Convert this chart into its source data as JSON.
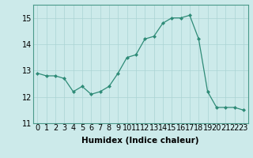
{
  "x": [
    0,
    1,
    2,
    3,
    4,
    5,
    6,
    7,
    8,
    9,
    10,
    11,
    12,
    13,
    14,
    15,
    16,
    17,
    18,
    19,
    20,
    21,
    22,
    23
  ],
  "y": [
    12.9,
    12.8,
    12.8,
    12.7,
    12.2,
    12.4,
    12.1,
    12.2,
    12.4,
    12.9,
    13.5,
    13.6,
    14.2,
    14.3,
    14.8,
    15.0,
    15.0,
    15.1,
    14.2,
    12.2,
    11.6,
    11.6,
    11.6,
    11.5
  ],
  "line_color": "#2e8b77",
  "marker": "D",
  "marker_size": 2.0,
  "bg_color": "#cceaea",
  "grid_color": "#aad4d4",
  "xlabel": "Humidex (Indice chaleur)",
  "ylabel": "",
  "ylim": [
    11,
    15.5
  ],
  "xlim": [
    -0.5,
    23.5
  ],
  "yticks": [
    11,
    12,
    13,
    14,
    15
  ],
  "xtick_labels": [
    "0",
    "1",
    "2",
    "3",
    "4",
    "5",
    "6",
    "7",
    "8",
    "9",
    "10",
    "11",
    "12",
    "13",
    "14",
    "15",
    "16",
    "17",
    "18",
    "19",
    "20",
    "21",
    "22",
    "23"
  ],
  "xlabel_fontsize": 7.5,
  "tick_fontsize": 7
}
